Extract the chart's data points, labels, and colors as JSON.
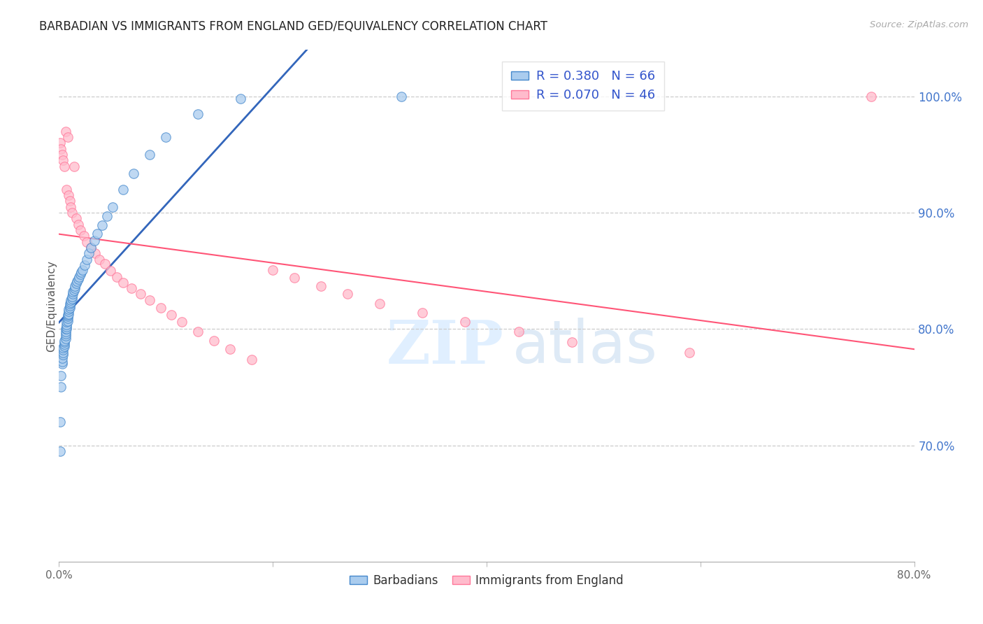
{
  "title": "BARBADIAN VS IMMIGRANTS FROM ENGLAND GED/EQUIVALENCY CORRELATION CHART",
  "source": "Source: ZipAtlas.com",
  "ylabel": "GED/Equivalency",
  "legend1_R": "0.380",
  "legend1_N": "66",
  "legend2_R": "0.070",
  "legend2_N": "46",
  "legend_label1": "Barbadians",
  "legend_label2": "Immigrants from England",
  "blue_color": "#AACCEE",
  "pink_color": "#FFBBCC",
  "blue_edge_color": "#4488CC",
  "pink_edge_color": "#FF7799",
  "blue_line_color": "#3366BB",
  "pink_line_color": "#FF5577",
  "blue_x": [
    0.001,
    0.001,
    0.002,
    0.002,
    0.003,
    0.003,
    0.003,
    0.004,
    0.004,
    0.004,
    0.004,
    0.005,
    0.005,
    0.005,
    0.005,
    0.006,
    0.006,
    0.006,
    0.006,
    0.006,
    0.007,
    0.007,
    0.007,
    0.007,
    0.008,
    0.008,
    0.008,
    0.008,
    0.009,
    0.009,
    0.009,
    0.01,
    0.01,
    0.01,
    0.011,
    0.011,
    0.012,
    0.012,
    0.013,
    0.013,
    0.014,
    0.015,
    0.015,
    0.016,
    0.017,
    0.018,
    0.019,
    0.02,
    0.021,
    0.022,
    0.024,
    0.026,
    0.028,
    0.03,
    0.033,
    0.036,
    0.04,
    0.045,
    0.05,
    0.06,
    0.07,
    0.085,
    0.1,
    0.13,
    0.17,
    0.32
  ],
  "blue_y": [
    0.695,
    0.72,
    0.75,
    0.76,
    0.77,
    0.772,
    0.775,
    0.778,
    0.78,
    0.782,
    0.784,
    0.785,
    0.787,
    0.789,
    0.79,
    0.792,
    0.794,
    0.796,
    0.798,
    0.8,
    0.8,
    0.802,
    0.804,
    0.806,
    0.807,
    0.809,
    0.811,
    0.812,
    0.813,
    0.815,
    0.817,
    0.818,
    0.82,
    0.822,
    0.823,
    0.825,
    0.826,
    0.828,
    0.83,
    0.832,
    0.833,
    0.835,
    0.837,
    0.839,
    0.841,
    0.843,
    0.845,
    0.847,
    0.849,
    0.851,
    0.855,
    0.86,
    0.865,
    0.87,
    0.876,
    0.882,
    0.889,
    0.897,
    0.905,
    0.92,
    0.934,
    0.95,
    0.965,
    0.985,
    0.998,
    1.0
  ],
  "pink_x": [
    0.001,
    0.002,
    0.003,
    0.004,
    0.005,
    0.006,
    0.007,
    0.008,
    0.009,
    0.01,
    0.011,
    0.012,
    0.014,
    0.016,
    0.018,
    0.02,
    0.023,
    0.026,
    0.03,
    0.034,
    0.038,
    0.043,
    0.048,
    0.054,
    0.06,
    0.068,
    0.076,
    0.085,
    0.095,
    0.105,
    0.115,
    0.13,
    0.145,
    0.16,
    0.18,
    0.2,
    0.22,
    0.245,
    0.27,
    0.3,
    0.34,
    0.38,
    0.43,
    0.48,
    0.59,
    0.76
  ],
  "pink_y": [
    0.96,
    0.955,
    0.95,
    0.945,
    0.94,
    0.97,
    0.92,
    0.965,
    0.915,
    0.91,
    0.905,
    0.9,
    0.94,
    0.895,
    0.89,
    0.885,
    0.88,
    0.875,
    0.87,
    0.865,
    0.86,
    0.856,
    0.85,
    0.845,
    0.84,
    0.835,
    0.83,
    0.825,
    0.818,
    0.812,
    0.806,
    0.798,
    0.79,
    0.783,
    0.774,
    0.851,
    0.844,
    0.837,
    0.83,
    0.822,
    0.814,
    0.806,
    0.798,
    0.789,
    0.78,
    1.0
  ],
  "xlim": [
    0.0,
    0.8
  ],
  "ylim": [
    0.6,
    1.04
  ],
  "ytick_positions": [
    0.7,
    0.8,
    0.9,
    1.0
  ],
  "ytick_labels": [
    "70.0%",
    "80.0%",
    "90.0%",
    "100.0%"
  ],
  "xtick_positions": [
    0.0,
    0.2,
    0.4,
    0.6,
    0.8
  ],
  "xtick_labels": [
    "0.0%",
    "",
    "",
    "",
    "80.0%"
  ],
  "watermark_zip": "ZIP",
  "watermark_atlas": "atlas",
  "background_color": "#FFFFFF"
}
